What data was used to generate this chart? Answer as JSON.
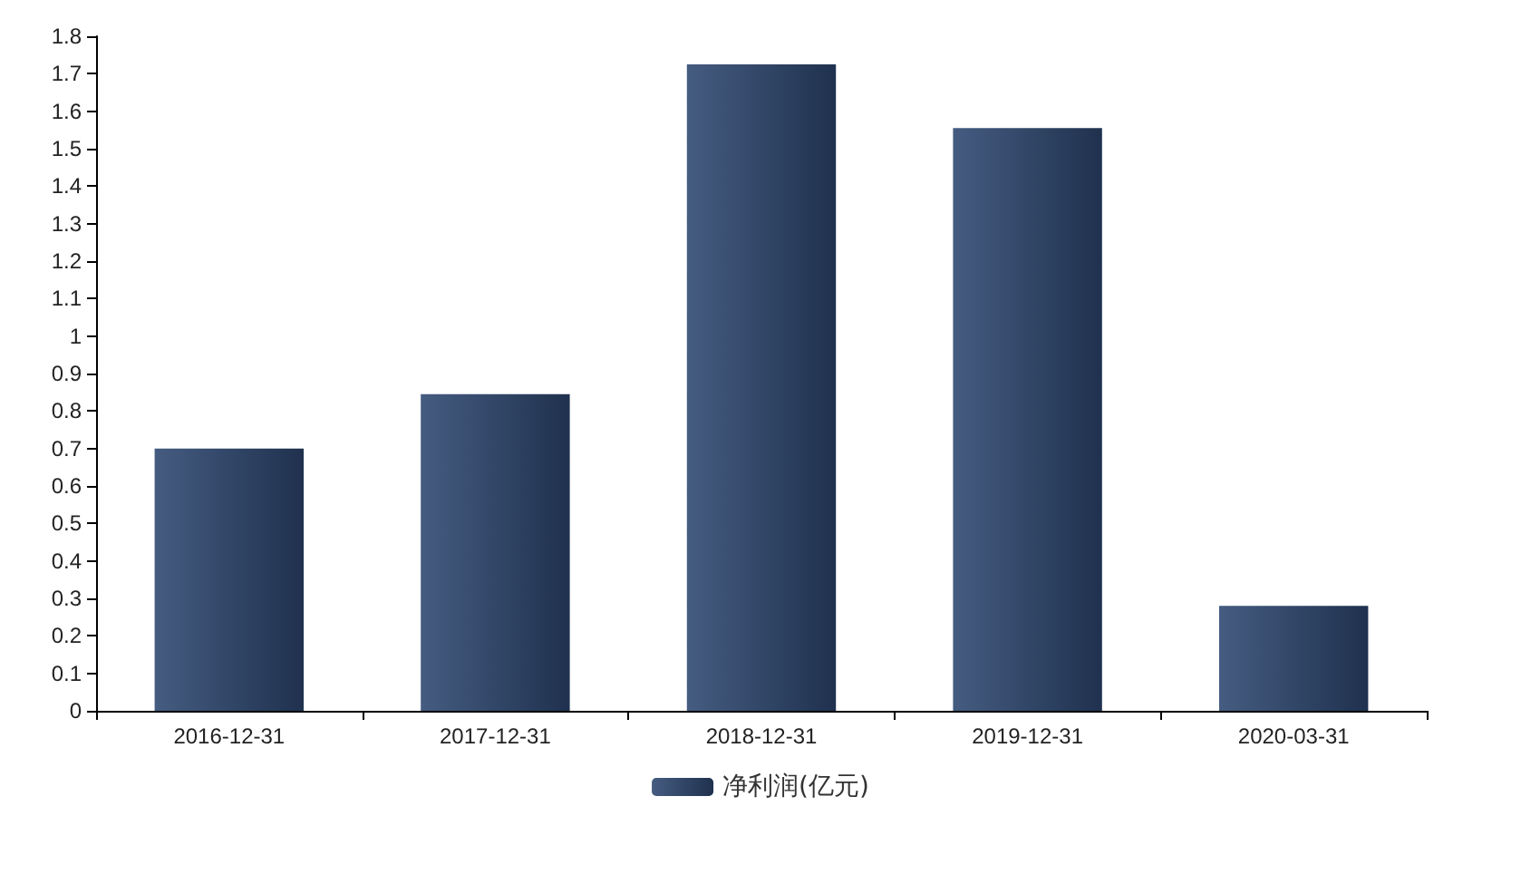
{
  "chart_data": {
    "type": "bar",
    "categories": [
      "2016-12-31",
      "2017-12-31",
      "2018-12-31",
      "2019-12-31",
      "2020-03-31"
    ],
    "series": [
      {
        "name": "净利润(亿元)",
        "color": "#2c4670",
        "values": [
          0.7,
          0.845,
          1.725,
          1.555,
          0.28
        ]
      }
    ],
    "ylim": [
      0,
      1.8
    ],
    "yticks": [
      0,
      0.1,
      0.2,
      0.3,
      0.4,
      0.5,
      0.6,
      0.7,
      0.8,
      0.9,
      1,
      1.1,
      1.2,
      1.3,
      1.4,
      1.5,
      1.6,
      1.7,
      1.8
    ],
    "grid": false,
    "legend": "bottom"
  }
}
